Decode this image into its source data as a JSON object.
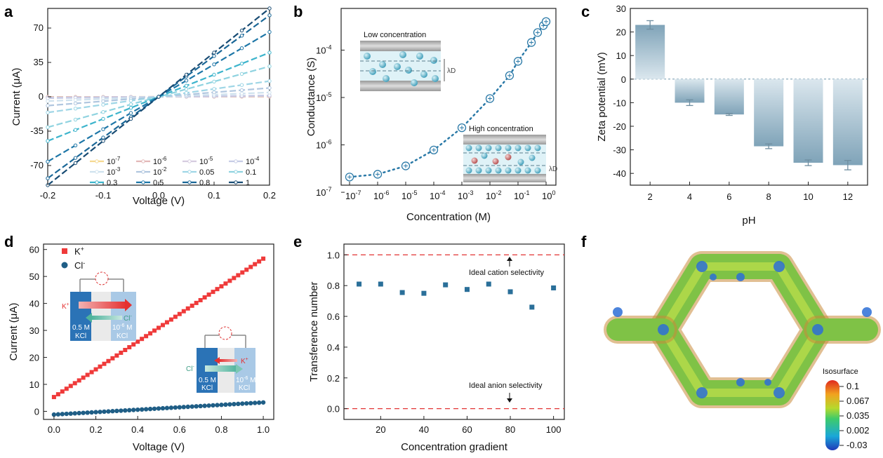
{
  "panel_labels": [
    "a",
    "b",
    "c",
    "d",
    "e",
    "f"
  ],
  "colors": {
    "a_series": [
      "#f5d990",
      "#e3b8b8",
      "#d6cce0",
      "#c6cce6",
      "#cfe2ee",
      "#b0c6df",
      "#9fd6e6",
      "#8fd3e0",
      "#3cb4cc",
      "#1d76a7",
      "#1a6797",
      "#174b73"
    ],
    "b_markers": "#2a79a7",
    "c_bar": "#8fb1c4",
    "d_k": "#ef3a3a",
    "d_cl": "#1f5e86",
    "e_points": "#2a6f99",
    "e_ref": "#e23535"
  },
  "chart_data": [
    {
      "panel": "a",
      "type": "line",
      "xlabel": "Voltage (V)",
      "ylabel": "Current (μA)",
      "xlim": [
        -0.2,
        0.2
      ],
      "ylim": [
        -90,
        90
      ],
      "xticks": [
        "-0.2",
        "-0.1",
        "0.0",
        "0.1",
        "0.2"
      ],
      "yticks": [
        "-70",
        "-35",
        "0",
        "35",
        "70"
      ],
      "legend_base": [
        "10",
        "10",
        "10",
        "10",
        "10",
        "10",
        "0.05",
        "0.1",
        "0.3",
        "0.5",
        "0.8",
        "1"
      ],
      "legend_exp": [
        "-7",
        "-6",
        "-5",
        "-4",
        "-3",
        "-2",
        "",
        "",
        "",
        "",
        "",
        ""
      ],
      "series": [
        {
          "name": "10-7",
          "slope": 0.5
        },
        {
          "name": "10-6",
          "slope": 1.2
        },
        {
          "name": "10-5",
          "slope": 3.5
        },
        {
          "name": "10-4",
          "slope": 7
        },
        {
          "name": "10-3",
          "slope": 22
        },
        {
          "name": "10-2",
          "slope": 45
        },
        {
          "name": "0.05",
          "slope": 80
        },
        {
          "name": "0.1",
          "slope": 155
        },
        {
          "name": "0.3",
          "slope": 225
        },
        {
          "name": "0.5",
          "slope": 330
        },
        {
          "name": "0.8",
          "slope": 415
        },
        {
          "name": "1",
          "slope": 450
        }
      ]
    },
    {
      "panel": "b",
      "type": "scatter",
      "xlabel": "Concentration (M)",
      "ylabel": "Conductance (S)",
      "scale": "log",
      "xtick_exp": [
        "-7",
        "-6",
        "-5",
        "-4",
        "-3",
        "-2",
        "-1",
        "0"
      ],
      "xtick_last": "10",
      "ytick_exp": [
        "-7",
        "-6",
        "-5",
        "-4"
      ],
      "x": [
        1e-07,
        1e-06,
        1e-05,
        0.0001,
        0.001,
        0.01,
        0.05,
        0.1,
        0.3,
        0.5,
        0.8,
        1
      ],
      "y": [
        2.1e-07,
        2.4e-07,
        3.6e-07,
        7.8e-07,
        2.3e-06,
        9.5e-06,
        2.9e-05,
        5.8e-05,
        0.000145,
        0.000235,
        0.00033,
        0.0004
      ],
      "insets": {
        "low": "Low concentration",
        "high": "High concentration",
        "debye": "λD"
      }
    },
    {
      "panel": "c",
      "type": "bar",
      "xlabel": "pH",
      "ylabel": "Zeta potential (mV)",
      "ylim": [
        -45,
        30
      ],
      "yticks": [
        "30",
        "20",
        "10",
        "0",
        "-10",
        "-20",
        "-30",
        "-40"
      ],
      "categories": [
        "2",
        "4",
        "6",
        "8",
        "10",
        "12"
      ],
      "values": [
        23,
        -10,
        -15,
        -28.5,
        -35.5,
        -36.5
      ],
      "errors": [
        1.8,
        1.2,
        0.4,
        1,
        1.2,
        2
      ]
    },
    {
      "panel": "d",
      "type": "scatter",
      "xlabel": "Voltage (V)",
      "ylabel": "Current (μA)",
      "xlim": [
        -0.05,
        1.05
      ],
      "ylim": [
        -3,
        62
      ],
      "xticks": [
        "0.0",
        "0.2",
        "0.4",
        "0.6",
        "0.8",
        "1.0"
      ],
      "yticks": [
        "0",
        "10",
        "20",
        "30",
        "40",
        "50",
        "60"
      ],
      "series": [
        {
          "name": "K+",
          "label_base": "K",
          "label_sup": "+",
          "intercept": 5.3,
          "slope": 51.3
        },
        {
          "name": "Cl-",
          "label_base": "Cl",
          "label_sup": "-",
          "intercept": -1.2,
          "slope": 4.5
        }
      ],
      "insets": {
        "conc_high": "0.5 M",
        "conc_low": "10",
        "conc_low_exp": "-6",
        "conc_low_unit": " M",
        "salt": "KCl",
        "k": "K",
        "k_sup": "+",
        "cl": "Cl",
        "cl_sup": "-"
      }
    },
    {
      "panel": "e",
      "type": "scatter",
      "xlabel": "Concentration gradient",
      "ylabel": "Transference number",
      "xlim": [
        3,
        105
      ],
      "ylim": [
        -0.07,
        1.07
      ],
      "xticks": [
        "20",
        "40",
        "60",
        "80",
        "100"
      ],
      "yticks": [
        "1.0",
        "0.8",
        "0.6",
        "0.4",
        "0.2",
        "0.0"
      ],
      "x": [
        10,
        20,
        30,
        40,
        50,
        60,
        70,
        80,
        90,
        100
      ],
      "y": [
        0.81,
        0.81,
        0.755,
        0.75,
        0.805,
        0.775,
        0.81,
        0.76,
        0.66,
        0.785
      ],
      "annotations": [
        "Ideal cation selectivity",
        "Ideal anion selectivity"
      ],
      "references": [
        1.0,
        0.0
      ]
    },
    {
      "panel": "f",
      "type": "heatmap",
      "colorbar_title": "Isosurface",
      "colorbar_ticks": [
        "0.1",
        "0.067",
        "0.035",
        "0.002",
        "-0.03"
      ]
    }
  ]
}
